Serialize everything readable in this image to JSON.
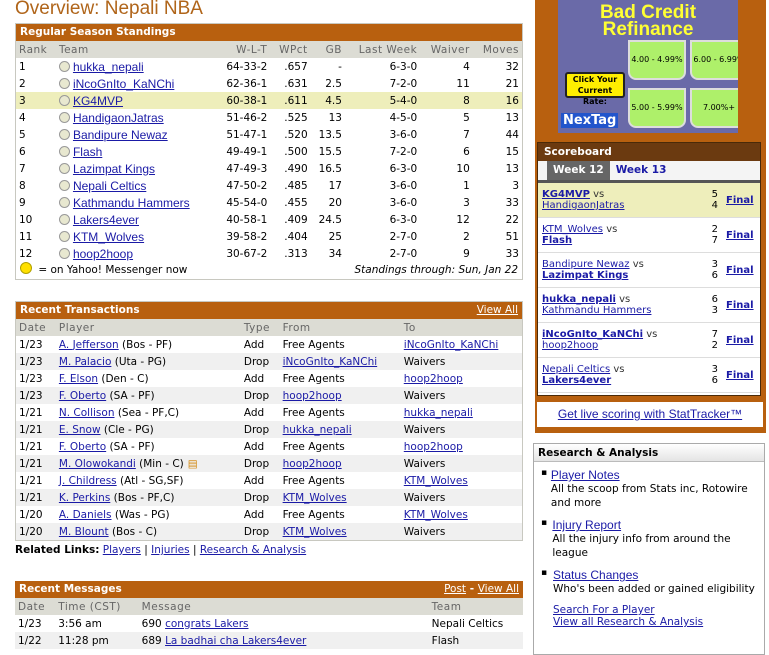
{
  "page_title": "Overview: Nepali NBA",
  "standings": {
    "header": "Regular Season Standings",
    "columns": [
      "Rank",
      "Team",
      "W-L-T",
      "WPct",
      "GB",
      "Last Week",
      "Waiver",
      "Moves"
    ],
    "rows": [
      {
        "rank": "1",
        "team": "hukka_nepali",
        "wlt": "64-33-2",
        "wpct": ".657",
        "gb": "-",
        "last": "6-3-0",
        "waiver": "4",
        "moves": "32"
      },
      {
        "rank": "2",
        "team": "iNcoGnIto_KaNChi",
        "wlt": "62-36-1",
        "wpct": ".631",
        "gb": "2.5",
        "last": "7-2-0",
        "waiver": "11",
        "moves": "21"
      },
      {
        "rank": "3",
        "team": "KG4MVP",
        "wlt": "60-38-1",
        "wpct": ".611",
        "gb": "4.5",
        "last": "5-4-0",
        "waiver": "8",
        "moves": "16",
        "highlight": true
      },
      {
        "rank": "4",
        "team": "HandigaonJatras",
        "wlt": "51-46-2",
        "wpct": ".525",
        "gb": "13",
        "last": "4-5-0",
        "waiver": "5",
        "moves": "13"
      },
      {
        "rank": "5",
        "team": "Bandipure Newaz",
        "wlt": "51-47-1",
        "wpct": ".520",
        "gb": "13.5",
        "last": "3-6-0",
        "waiver": "7",
        "moves": "44"
      },
      {
        "rank": "6",
        "team": "Flash",
        "wlt": "49-49-1",
        "wpct": ".500",
        "gb": "15.5",
        "last": "7-2-0",
        "waiver": "6",
        "moves": "15"
      },
      {
        "rank": "7",
        "team": "Lazimpat Kings",
        "wlt": "47-49-3",
        "wpct": ".490",
        "gb": "16.5",
        "last": "6-3-0",
        "waiver": "10",
        "moves": "13"
      },
      {
        "rank": "8",
        "team": "Nepali Celtics",
        "wlt": "47-50-2",
        "wpct": ".485",
        "gb": "17",
        "last": "3-6-0",
        "waiver": "1",
        "moves": "3"
      },
      {
        "rank": "9",
        "team": "Kathmandu Hammers",
        "wlt": "45-54-0",
        "wpct": ".455",
        "gb": "20",
        "last": "3-6-0",
        "waiver": "3",
        "moves": "33"
      },
      {
        "rank": "10",
        "team": "Lakers4ever",
        "wlt": "40-58-1",
        "wpct": ".409",
        "gb": "24.5",
        "last": "6-3-0",
        "waiver": "12",
        "moves": "22"
      },
      {
        "rank": "11",
        "team": "KTM_Wolves",
        "wlt": "39-58-2",
        "wpct": ".404",
        "gb": "25",
        "last": "2-7-0",
        "waiver": "2",
        "moves": "51"
      },
      {
        "rank": "12",
        "team": "hoop2hoop",
        "wlt": "30-67-2",
        "wpct": ".313",
        "gb": "34",
        "last": "2-7-0",
        "waiver": "9",
        "moves": "33"
      }
    ],
    "legend": "= on Yahoo! Messenger now",
    "through": "Standings through: Sun, Jan 22"
  },
  "transactions": {
    "header": "Recent Transactions",
    "view_all": "View All",
    "columns": [
      "Date",
      "Player",
      "Type",
      "From",
      "To"
    ],
    "rows": [
      {
        "date": "1/23",
        "player": "A. Jefferson",
        "pos": "(Bos - PF)",
        "type": "Add",
        "from": "Free Agents",
        "to": "iNcoGnIto_KaNChi"
      },
      {
        "date": "1/23",
        "player": "M. Palacio",
        "pos": "(Uta - PG)",
        "type": "Drop",
        "from": "iNcoGnIto_KaNChi",
        "to": "Waivers"
      },
      {
        "date": "1/23",
        "player": "F. Elson",
        "pos": "(Den - C)",
        "type": "Add",
        "from": "Free Agents",
        "to": "hoop2hoop"
      },
      {
        "date": "1/23",
        "player": "F. Oberto",
        "pos": "(SA - PF)",
        "type": "Drop",
        "from": "hoop2hoop",
        "to": "Waivers"
      },
      {
        "date": "1/21",
        "player": "N. Collison",
        "pos": "(Sea - PF,C)",
        "type": "Add",
        "from": "Free Agents",
        "to": "hukka_nepali"
      },
      {
        "date": "1/21",
        "player": "E. Snow",
        "pos": "(Cle - PG)",
        "type": "Drop",
        "from": "hukka_nepali",
        "to": "Waivers"
      },
      {
        "date": "1/21",
        "player": "F. Oberto",
        "pos": "(SA - PF)",
        "type": "Add",
        "from": "Free Agents",
        "to": "hoop2hoop"
      },
      {
        "date": "1/21",
        "player": "M. Olowokandi",
        "pos": "(Min - C)",
        "type": "Drop",
        "from": "hoop2hoop",
        "to": "Waivers",
        "note": true
      },
      {
        "date": "1/21",
        "player": "J. Childress",
        "pos": "(Atl - SG,SF)",
        "type": "Add",
        "from": "Free Agents",
        "to": "KTM_Wolves"
      },
      {
        "date": "1/21",
        "player": "K. Perkins",
        "pos": "(Bos - PF,C)",
        "type": "Drop",
        "from": "KTM_Wolves",
        "to": "Waivers"
      },
      {
        "date": "1/20",
        "player": "A. Daniels",
        "pos": "(Was - PG)",
        "type": "Add",
        "from": "Free Agents",
        "to": "KTM_Wolves"
      },
      {
        "date": "1/20",
        "player": "M. Blount",
        "pos": "(Bos - C)",
        "type": "Drop",
        "from": "KTM_Wolves",
        "to": "Waivers"
      }
    ]
  },
  "related": {
    "label": "Related Links:",
    "links": [
      "Players",
      "Injuries",
      "Research & Analysis"
    ]
  },
  "messages": {
    "header": "Recent Messages",
    "post": "Post",
    "sep": "-",
    "view_all": "View All",
    "columns": [
      "Date",
      "Time (CST)",
      "Message",
      "Team"
    ],
    "rows": [
      {
        "date": "1/23",
        "time": "3:56 am",
        "num": "690",
        "msg": "congrats Lakers",
        "team": "Nepali Celtics"
      },
      {
        "date": "1/22",
        "time": "11:28 pm",
        "num": "689",
        "msg": "La badhai cha Lakers4ever",
        "team": "Flash"
      }
    ]
  },
  "ad": {
    "title": "Bad Credit Refinance",
    "click": "Click Your Current Rate:",
    "rates": [
      "4.00 - 4.99%",
      "6.00 - 6.99%",
      "5.00 - 5.99%",
      "7.00%+"
    ],
    "brand": "NexTag"
  },
  "scoreboard": {
    "header": "Scoreboard",
    "tabs": [
      "Week 12",
      "Week 13"
    ],
    "vs": "vs",
    "final": "Final",
    "games": [
      {
        "t1": "KG4MVP",
        "s1": "5",
        "t2": "HandigaonJatras",
        "s2": "4",
        "win": 1,
        "hl": true
      },
      {
        "t1": "KTM_Wolves",
        "s1": "2",
        "t2": "Flash",
        "s2": "7",
        "win": 2
      },
      {
        "t1": "Bandipure Newaz",
        "s1": "3",
        "t2": "Lazimpat Kings",
        "s2": "6",
        "win": 2
      },
      {
        "t1": "hukka_nepali",
        "s1": "6",
        "t2": "Kathmandu Hammers",
        "s2": "3",
        "win": 1
      },
      {
        "t1": "iNcoGnIto_KaNChi",
        "s1": "7",
        "t2": "hoop2hoop",
        "s2": "2",
        "win": 1
      },
      {
        "t1": "Nepali Celtics",
        "s1": "3",
        "t2": "Lakers4ever",
        "s2": "6",
        "win": 2
      }
    ],
    "stattracker": "Get live scoring with StatTracker™"
  },
  "research": {
    "header": "Research & Analysis",
    "items": [
      {
        "title": "Player Notes",
        "desc": "All the scoop from Stats inc, Rotowire and more"
      },
      {
        "title": "Injury Report",
        "desc": "All the injury info from around the league"
      },
      {
        "title": "Status Changes",
        "desc": "Who's been added or gained eligibility"
      }
    ],
    "links": [
      "Search For a Player",
      "View all Research & Analysis"
    ]
  }
}
